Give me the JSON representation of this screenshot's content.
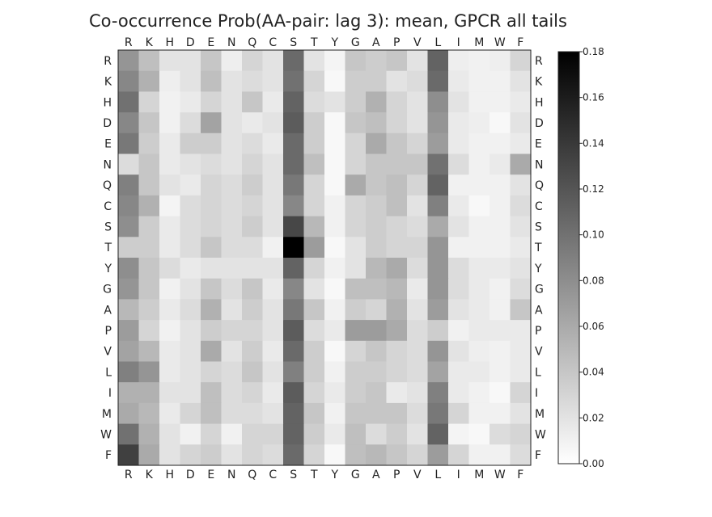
{
  "chart_data": {
    "type": "heatmap",
    "title": "Co-occurrence Prob(AA-pair: lag 3): mean, GPCR all tails",
    "labels": [
      "R",
      "K",
      "H",
      "D",
      "E",
      "N",
      "Q",
      "C",
      "S",
      "T",
      "Y",
      "G",
      "A",
      "P",
      "V",
      "L",
      "I",
      "M",
      "W",
      "F"
    ],
    "colorbar": {
      "min": 0.0,
      "max": 0.18,
      "ticks": [
        "0.00",
        "0.02",
        "0.04",
        "0.06",
        "0.08",
        "0.10",
        "0.12",
        "0.14",
        "0.16",
        "0.18"
      ]
    },
    "values": [
      [
        0.075,
        0.045,
        0.02,
        0.02,
        0.04,
        0.012,
        0.03,
        0.02,
        0.105,
        0.02,
        0.008,
        0.04,
        0.035,
        0.04,
        0.02,
        0.11,
        0.012,
        0.01,
        0.012,
        0.03
      ],
      [
        0.085,
        0.055,
        0.012,
        0.02,
        0.045,
        0.02,
        0.025,
        0.02,
        0.1,
        0.03,
        0.005,
        0.035,
        0.035,
        0.02,
        0.025,
        0.105,
        0.015,
        0.01,
        0.01,
        0.02
      ],
      [
        0.1,
        0.03,
        0.01,
        0.015,
        0.03,
        0.02,
        0.04,
        0.015,
        0.11,
        0.025,
        0.02,
        0.035,
        0.055,
        0.03,
        0.02,
        0.08,
        0.02,
        0.01,
        0.01,
        0.015
      ],
      [
        0.085,
        0.04,
        0.01,
        0.025,
        0.065,
        0.02,
        0.015,
        0.02,
        0.115,
        0.035,
        0.005,
        0.04,
        0.045,
        0.03,
        0.02,
        0.075,
        0.015,
        0.012,
        0.005,
        0.02
      ],
      [
        0.095,
        0.035,
        0.015,
        0.035,
        0.035,
        0.02,
        0.025,
        0.015,
        0.105,
        0.035,
        0.005,
        0.03,
        0.06,
        0.04,
        0.03,
        0.07,
        0.015,
        0.01,
        0.01,
        0.015
      ],
      [
        0.025,
        0.04,
        0.015,
        0.02,
        0.025,
        0.02,
        0.03,
        0.02,
        0.105,
        0.045,
        0.005,
        0.03,
        0.04,
        0.04,
        0.04,
        0.1,
        0.025,
        0.01,
        0.015,
        0.06
      ],
      [
        0.09,
        0.04,
        0.02,
        0.015,
        0.03,
        0.025,
        0.035,
        0.02,
        0.095,
        0.03,
        0.005,
        0.06,
        0.04,
        0.045,
        0.03,
        0.11,
        0.01,
        0.01,
        0.01,
        0.02
      ],
      [
        0.085,
        0.055,
        0.008,
        0.025,
        0.03,
        0.025,
        0.03,
        0.02,
        0.085,
        0.03,
        0.01,
        0.03,
        0.035,
        0.045,
        0.02,
        0.09,
        0.015,
        0.005,
        0.01,
        0.025
      ],
      [
        0.08,
        0.035,
        0.015,
        0.025,
        0.03,
        0.025,
        0.035,
        0.02,
        0.13,
        0.05,
        0.01,
        0.03,
        0.035,
        0.03,
        0.025,
        0.06,
        0.02,
        0.01,
        0.01,
        0.02
      ],
      [
        0.035,
        0.035,
        0.015,
        0.025,
        0.04,
        0.025,
        0.025,
        0.01,
        0.18,
        0.07,
        0.005,
        0.02,
        0.035,
        0.03,
        0.03,
        0.075,
        0.01,
        0.01,
        0.01,
        0.015
      ],
      [
        0.08,
        0.04,
        0.025,
        0.015,
        0.02,
        0.02,
        0.02,
        0.02,
        0.11,
        0.03,
        0.01,
        0.02,
        0.05,
        0.06,
        0.025,
        0.075,
        0.025,
        0.015,
        0.015,
        0.02
      ],
      [
        0.075,
        0.04,
        0.01,
        0.02,
        0.04,
        0.025,
        0.04,
        0.015,
        0.085,
        0.02,
        0.005,
        0.045,
        0.045,
        0.05,
        0.015,
        0.075,
        0.025,
        0.015,
        0.01,
        0.025
      ],
      [
        0.05,
        0.035,
        0.015,
        0.025,
        0.055,
        0.02,
        0.035,
        0.02,
        0.095,
        0.04,
        0.01,
        0.035,
        0.03,
        0.055,
        0.02,
        0.07,
        0.02,
        0.015,
        0.01,
        0.04
      ],
      [
        0.07,
        0.03,
        0.01,
        0.02,
        0.035,
        0.03,
        0.03,
        0.02,
        0.115,
        0.025,
        0.015,
        0.07,
        0.07,
        0.06,
        0.025,
        0.035,
        0.01,
        0.015,
        0.015,
        0.015
      ],
      [
        0.065,
        0.05,
        0.015,
        0.02,
        0.06,
        0.02,
        0.035,
        0.015,
        0.105,
        0.035,
        0.005,
        0.03,
        0.04,
        0.03,
        0.025,
        0.075,
        0.02,
        0.012,
        0.01,
        0.015
      ],
      [
        0.09,
        0.075,
        0.015,
        0.02,
        0.03,
        0.025,
        0.04,
        0.02,
        0.09,
        0.035,
        0.01,
        0.035,
        0.035,
        0.03,
        0.025,
        0.065,
        0.015,
        0.015,
        0.01,
        0.015
      ],
      [
        0.055,
        0.055,
        0.02,
        0.02,
        0.045,
        0.025,
        0.03,
        0.015,
        0.115,
        0.03,
        0.015,
        0.035,
        0.04,
        0.015,
        0.02,
        0.09,
        0.015,
        0.01,
        0.005,
        0.03
      ],
      [
        0.06,
        0.05,
        0.015,
        0.03,
        0.045,
        0.025,
        0.025,
        0.02,
        0.11,
        0.04,
        0.01,
        0.04,
        0.04,
        0.04,
        0.025,
        0.095,
        0.03,
        0.01,
        0.01,
        0.02
      ],
      [
        0.1,
        0.055,
        0.02,
        0.01,
        0.03,
        0.01,
        0.03,
        0.03,
        0.11,
        0.035,
        0.015,
        0.045,
        0.025,
        0.035,
        0.02,
        0.11,
        0.008,
        0.005,
        0.025,
        0.03
      ],
      [
        0.135,
        0.06,
        0.02,
        0.03,
        0.035,
        0.02,
        0.03,
        0.025,
        0.105,
        0.03,
        0.005,
        0.045,
        0.05,
        0.04,
        0.03,
        0.07,
        0.03,
        0.01,
        0.01,
        0.025
      ]
    ]
  }
}
